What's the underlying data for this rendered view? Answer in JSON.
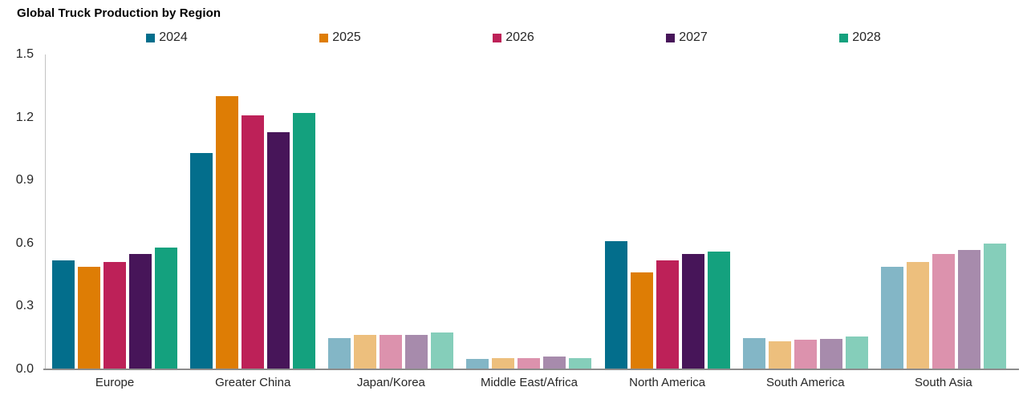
{
  "title": "Global Truck Production by Region",
  "chart_data": {
    "type": "bar",
    "title": "Global Truck Production by Region",
    "xlabel": "",
    "ylabel": "",
    "ylim": [
      0,
      1.5
    ],
    "ytick_labels": [
      "1.5",
      "1.2",
      "0.9",
      "0.6",
      "0.3",
      "0.0"
    ],
    "grid": false,
    "legend_position": "top",
    "categories": [
      "Europe",
      "Greater China",
      "Japan/Korea",
      "Middle East/Africa",
      "North America",
      "South America",
      "South Asia"
    ],
    "category_muted": [
      false,
      false,
      true,
      true,
      false,
      true,
      true
    ],
    "series": [
      {
        "name": "2024",
        "color": "#036E8C",
        "muted_color": "#83B6C6",
        "values": [
          0.52,
          1.03,
          0.15,
          0.05,
          0.61,
          0.15,
          0.49
        ]
      },
      {
        "name": "2025",
        "color": "#DE7D05",
        "muted_color": "#EDBF7D",
        "values": [
          0.49,
          1.3,
          0.165,
          0.055,
          0.46,
          0.135,
          0.51
        ]
      },
      {
        "name": "2026",
        "color": "#BD2158",
        "muted_color": "#DC92AD",
        "values": [
          0.51,
          1.21,
          0.165,
          0.055,
          0.52,
          0.14,
          0.55
        ]
      },
      {
        "name": "2027",
        "color": "#471559",
        "muted_color": "#A78BAC",
        "values": [
          0.55,
          1.13,
          0.165,
          0.06,
          0.55,
          0.145,
          0.57
        ]
      },
      {
        "name": "2028",
        "color": "#14A17E",
        "muted_color": "#85CEBA",
        "values": [
          0.58,
          1.22,
          0.175,
          0.055,
          0.56,
          0.155,
          0.6
        ]
      }
    ]
  },
  "axis_colors": {
    "y_axis_line": "#c3c3c3",
    "x_axis_line": "#8c8c8c",
    "text": "#262626"
  }
}
